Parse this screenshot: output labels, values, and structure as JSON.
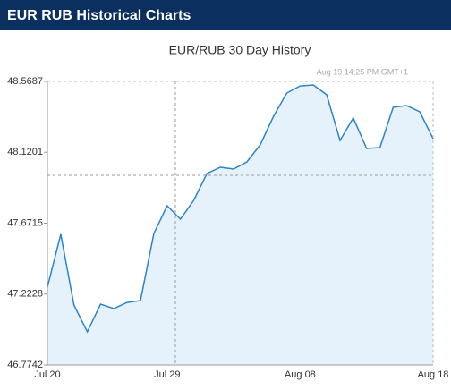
{
  "header": {
    "title": "EUR RUB Historical Charts"
  },
  "chart_data": {
    "type": "line",
    "title": "EUR/RUB  30 Day History",
    "annotation": "Aug 19  14:25 PM GMT+1",
    "categories": [
      "Jul 20",
      null,
      null,
      null,
      null,
      null,
      null,
      null,
      null,
      "Jul 29",
      null,
      null,
      null,
      null,
      null,
      null,
      null,
      null,
      null,
      "Aug 08",
      null,
      null,
      null,
      null,
      null,
      null,
      null,
      null,
      null,
      "Aug 18"
    ],
    "series": [
      {
        "name": "EUR/RUB",
        "color": "#2b83c9",
        "values": [
          47.267,
          47.601,
          47.153,
          46.984,
          47.159,
          47.131,
          47.17,
          47.182,
          47.606,
          47.782,
          47.697,
          47.816,
          47.986,
          48.025,
          48.014,
          48.059,
          48.167,
          48.348,
          48.495,
          48.54,
          48.546,
          48.484,
          48.195,
          48.337,
          48.144,
          48.15,
          48.405,
          48.416,
          48.376,
          48.206
        ]
      }
    ],
    "ylim": [
      46.7742,
      48.5687
    ],
    "yticks": [
      46.7742,
      47.2228,
      47.6715,
      48.1201,
      48.5687
    ],
    "fill": "#e6f2fb",
    "grid": false
  }
}
